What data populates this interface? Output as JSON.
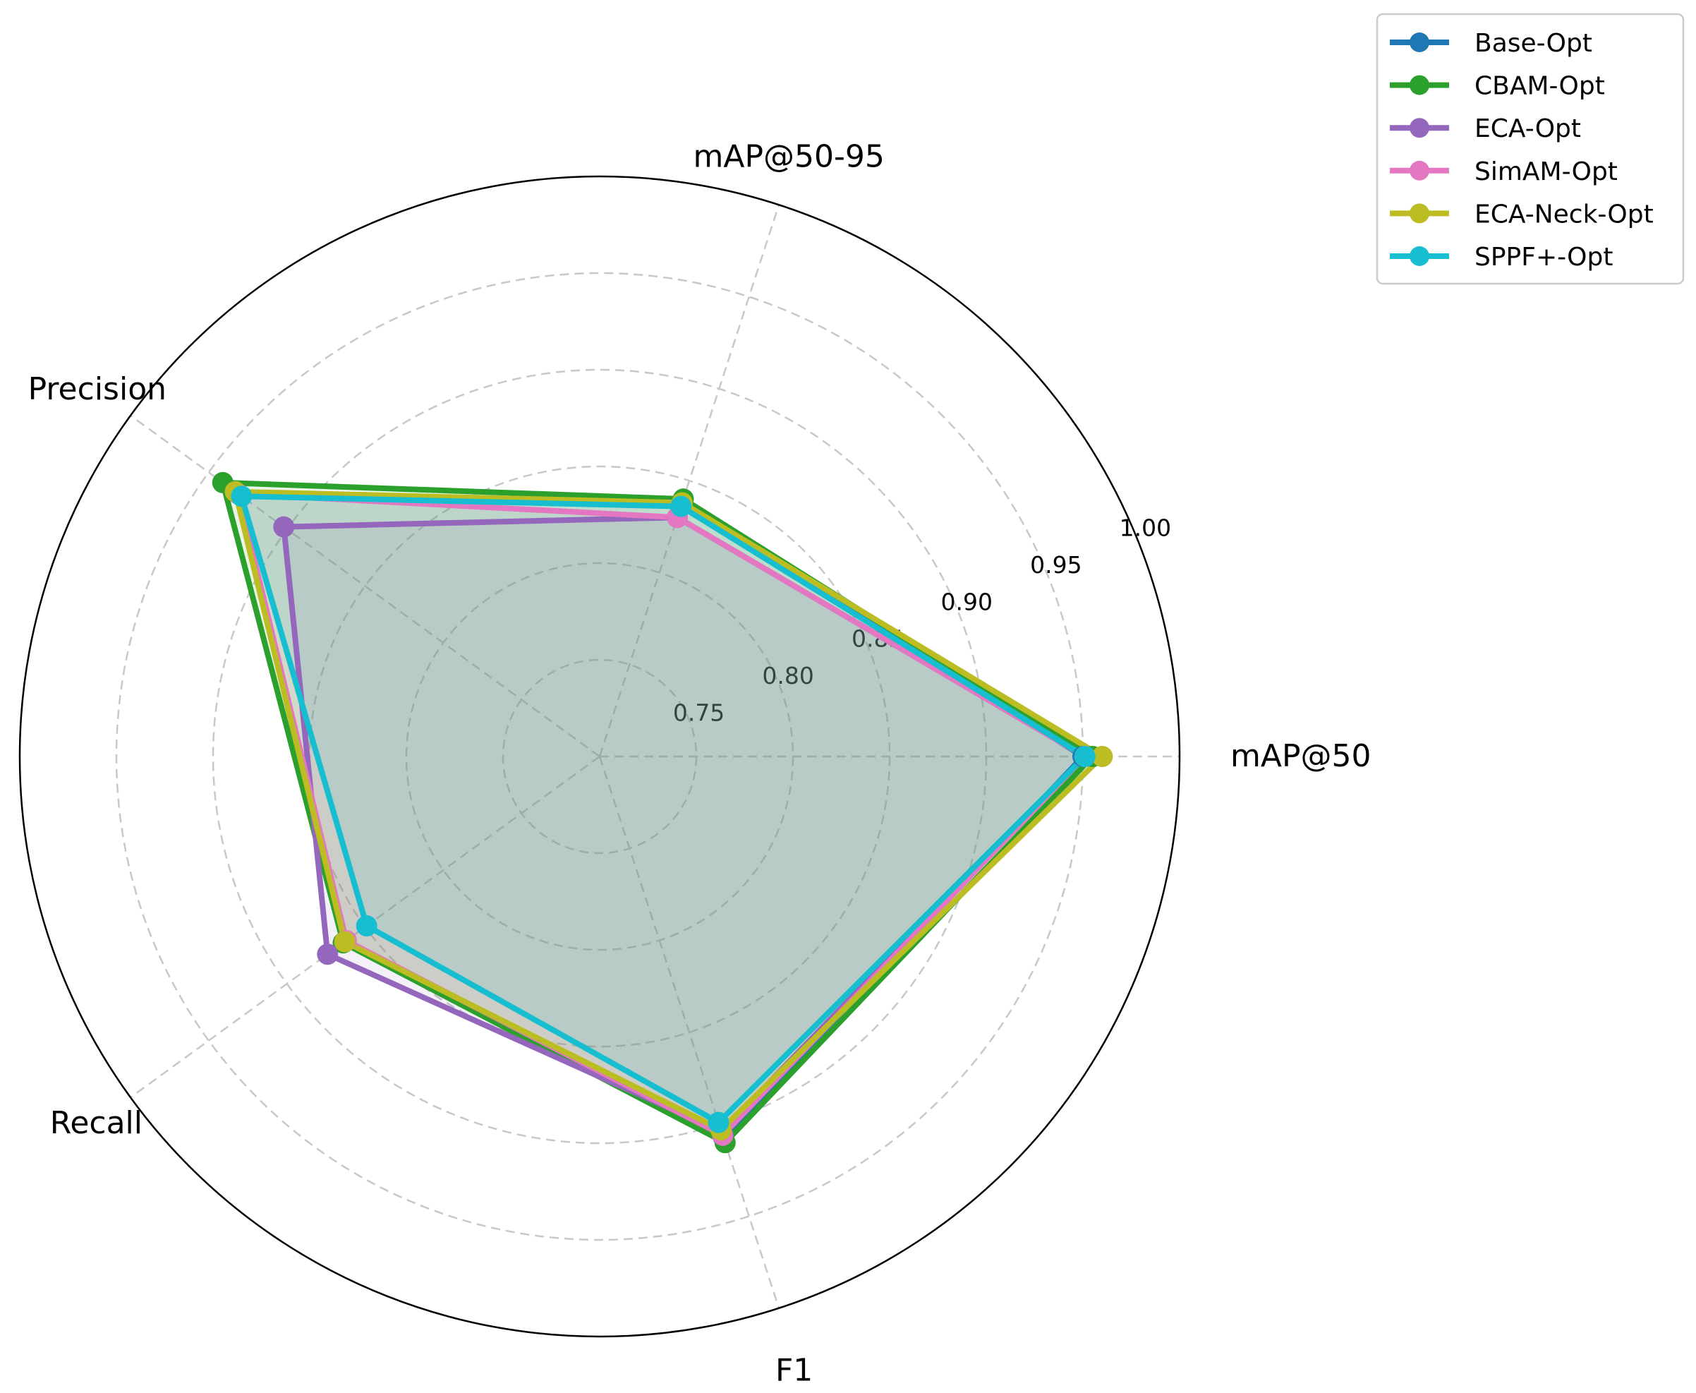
{
  "chart_data": {
    "type": "radar",
    "axes": [
      "mAP@50",
      "mAP@50-95",
      "Precision",
      "Recall",
      "F1"
    ],
    "rlim": [
      0.7,
      1.0
    ],
    "rticks": [
      0.75,
      0.8,
      0.85,
      0.9,
      0.95,
      1.0
    ],
    "rtick_labels": [
      "0.75",
      "0.80",
      "0.85",
      "0.90",
      "0.95",
      "1.00"
    ],
    "grid": true,
    "legend_position": "top-right",
    "series": [
      {
        "name": "Base-Opt",
        "color": "#1f77b4",
        "values": [
          0.95,
          0.838,
          0.932,
          0.863,
          0.907
        ]
      },
      {
        "name": "CBAM-Opt",
        "color": "#2ca02c",
        "values": [
          0.955,
          0.84,
          0.941,
          0.864,
          0.91
        ]
      },
      {
        "name": "ECA-Opt",
        "color": "#9467bd",
        "values": [
          0.951,
          0.83,
          0.902,
          0.874,
          0.904
        ]
      },
      {
        "name": "SimAM-Opt",
        "color": "#e377c2",
        "values": [
          0.951,
          0.83,
          0.931,
          0.862,
          0.906
        ]
      },
      {
        "name": "ECA-Neck-Opt",
        "color": "#bcbd22",
        "values": [
          0.96,
          0.838,
          0.933,
          0.863,
          0.903
        ]
      },
      {
        "name": "SPPF+-Opt",
        "color": "#17becf",
        "values": [
          0.951,
          0.836,
          0.929,
          0.849,
          0.899
        ]
      }
    ]
  }
}
